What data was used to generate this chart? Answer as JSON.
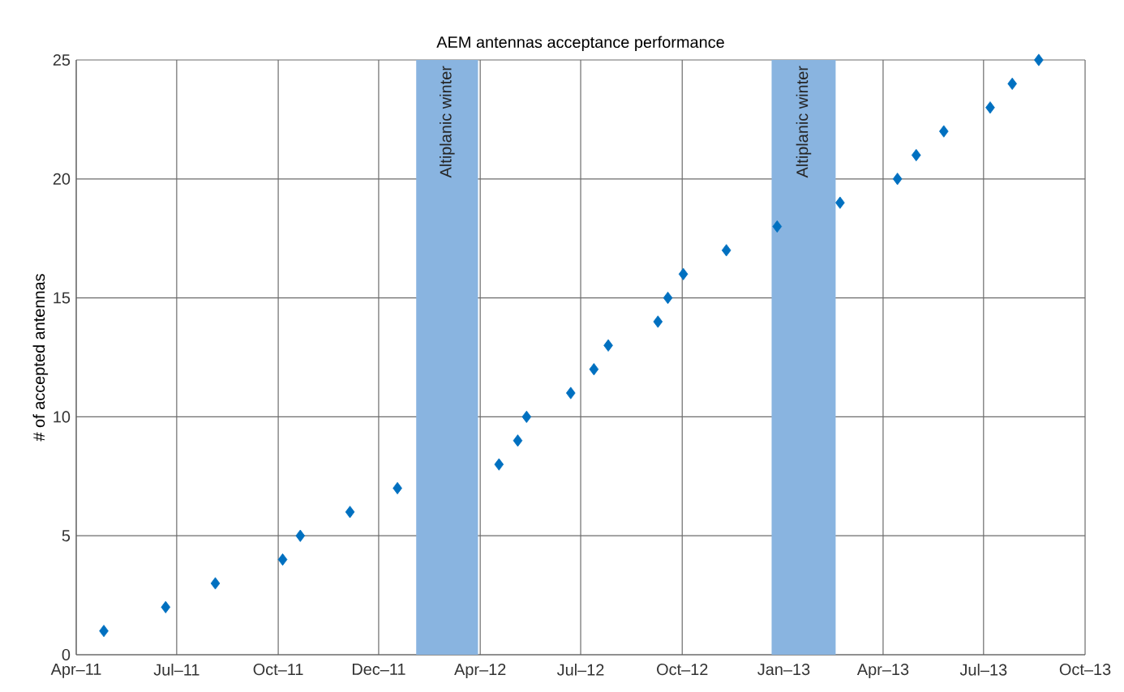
{
  "chart_data": {
    "type": "scatter",
    "title": "AEM antennas acceptance performance",
    "ylabel": "# of accepted antennas",
    "x": [
      "2011-04-26",
      "2011-06-21",
      "2011-08-05",
      "2011-10-05",
      "2011-10-21",
      "2011-12-05",
      "2012-01-17",
      "2012-04-18",
      "2012-05-05",
      "2012-05-13",
      "2012-06-22",
      "2012-07-13",
      "2012-07-26",
      "2012-09-09",
      "2012-09-18",
      "2012-10-02",
      "2012-11-10",
      "2012-12-26",
      "2013-02-21",
      "2013-04-14",
      "2013-05-01",
      "2013-05-26",
      "2013-07-07",
      "2013-07-27",
      "2013-08-20"
    ],
    "values": [
      1,
      2,
      3,
      4,
      5,
      6,
      7,
      8,
      9,
      10,
      11,
      12,
      13,
      14,
      15,
      16,
      17,
      18,
      19,
      20,
      21,
      22,
      23,
      24,
      25
    ],
    "color": "#0070c0",
    "marker": "diamond",
    "xlim": [
      "2011-04-01",
      "2013-10-01"
    ],
    "ylim": [
      0,
      25
    ],
    "xticks": [
      {
        "value": "2011-04-01",
        "label": "Apr–11"
      },
      {
        "value": "2011-07-01",
        "label": "Jul–11"
      },
      {
        "value": "2011-10-01",
        "label": "Oct–11"
      },
      {
        "value": "2011-12-31",
        "label": "Dec–11"
      },
      {
        "value": "2012-04-01",
        "label": "Apr–12"
      },
      {
        "value": "2012-07-01",
        "label": "Jul–12"
      },
      {
        "value": "2012-10-01",
        "label": "Oct–12"
      },
      {
        "value": "2013-01-01",
        "label": "Jan–13"
      },
      {
        "value": "2013-04-01",
        "label": "Apr–13"
      },
      {
        "value": "2013-07-01",
        "label": "Jul–13"
      },
      {
        "value": "2013-10-01",
        "label": "Oct–13"
      }
    ],
    "yticks": [
      0,
      5,
      10,
      15,
      20,
      25
    ],
    "grid": true,
    "bands": [
      {
        "axis": "x",
        "from": "2012-02-03",
        "to": "2012-03-30",
        "label": "Altiplanic winter",
        "color": "#89b4e0"
      },
      {
        "axis": "x",
        "from": "2012-12-21",
        "to": "2013-02-17",
        "label": "Altiplanic winter",
        "color": "#89b4e0"
      }
    ]
  }
}
